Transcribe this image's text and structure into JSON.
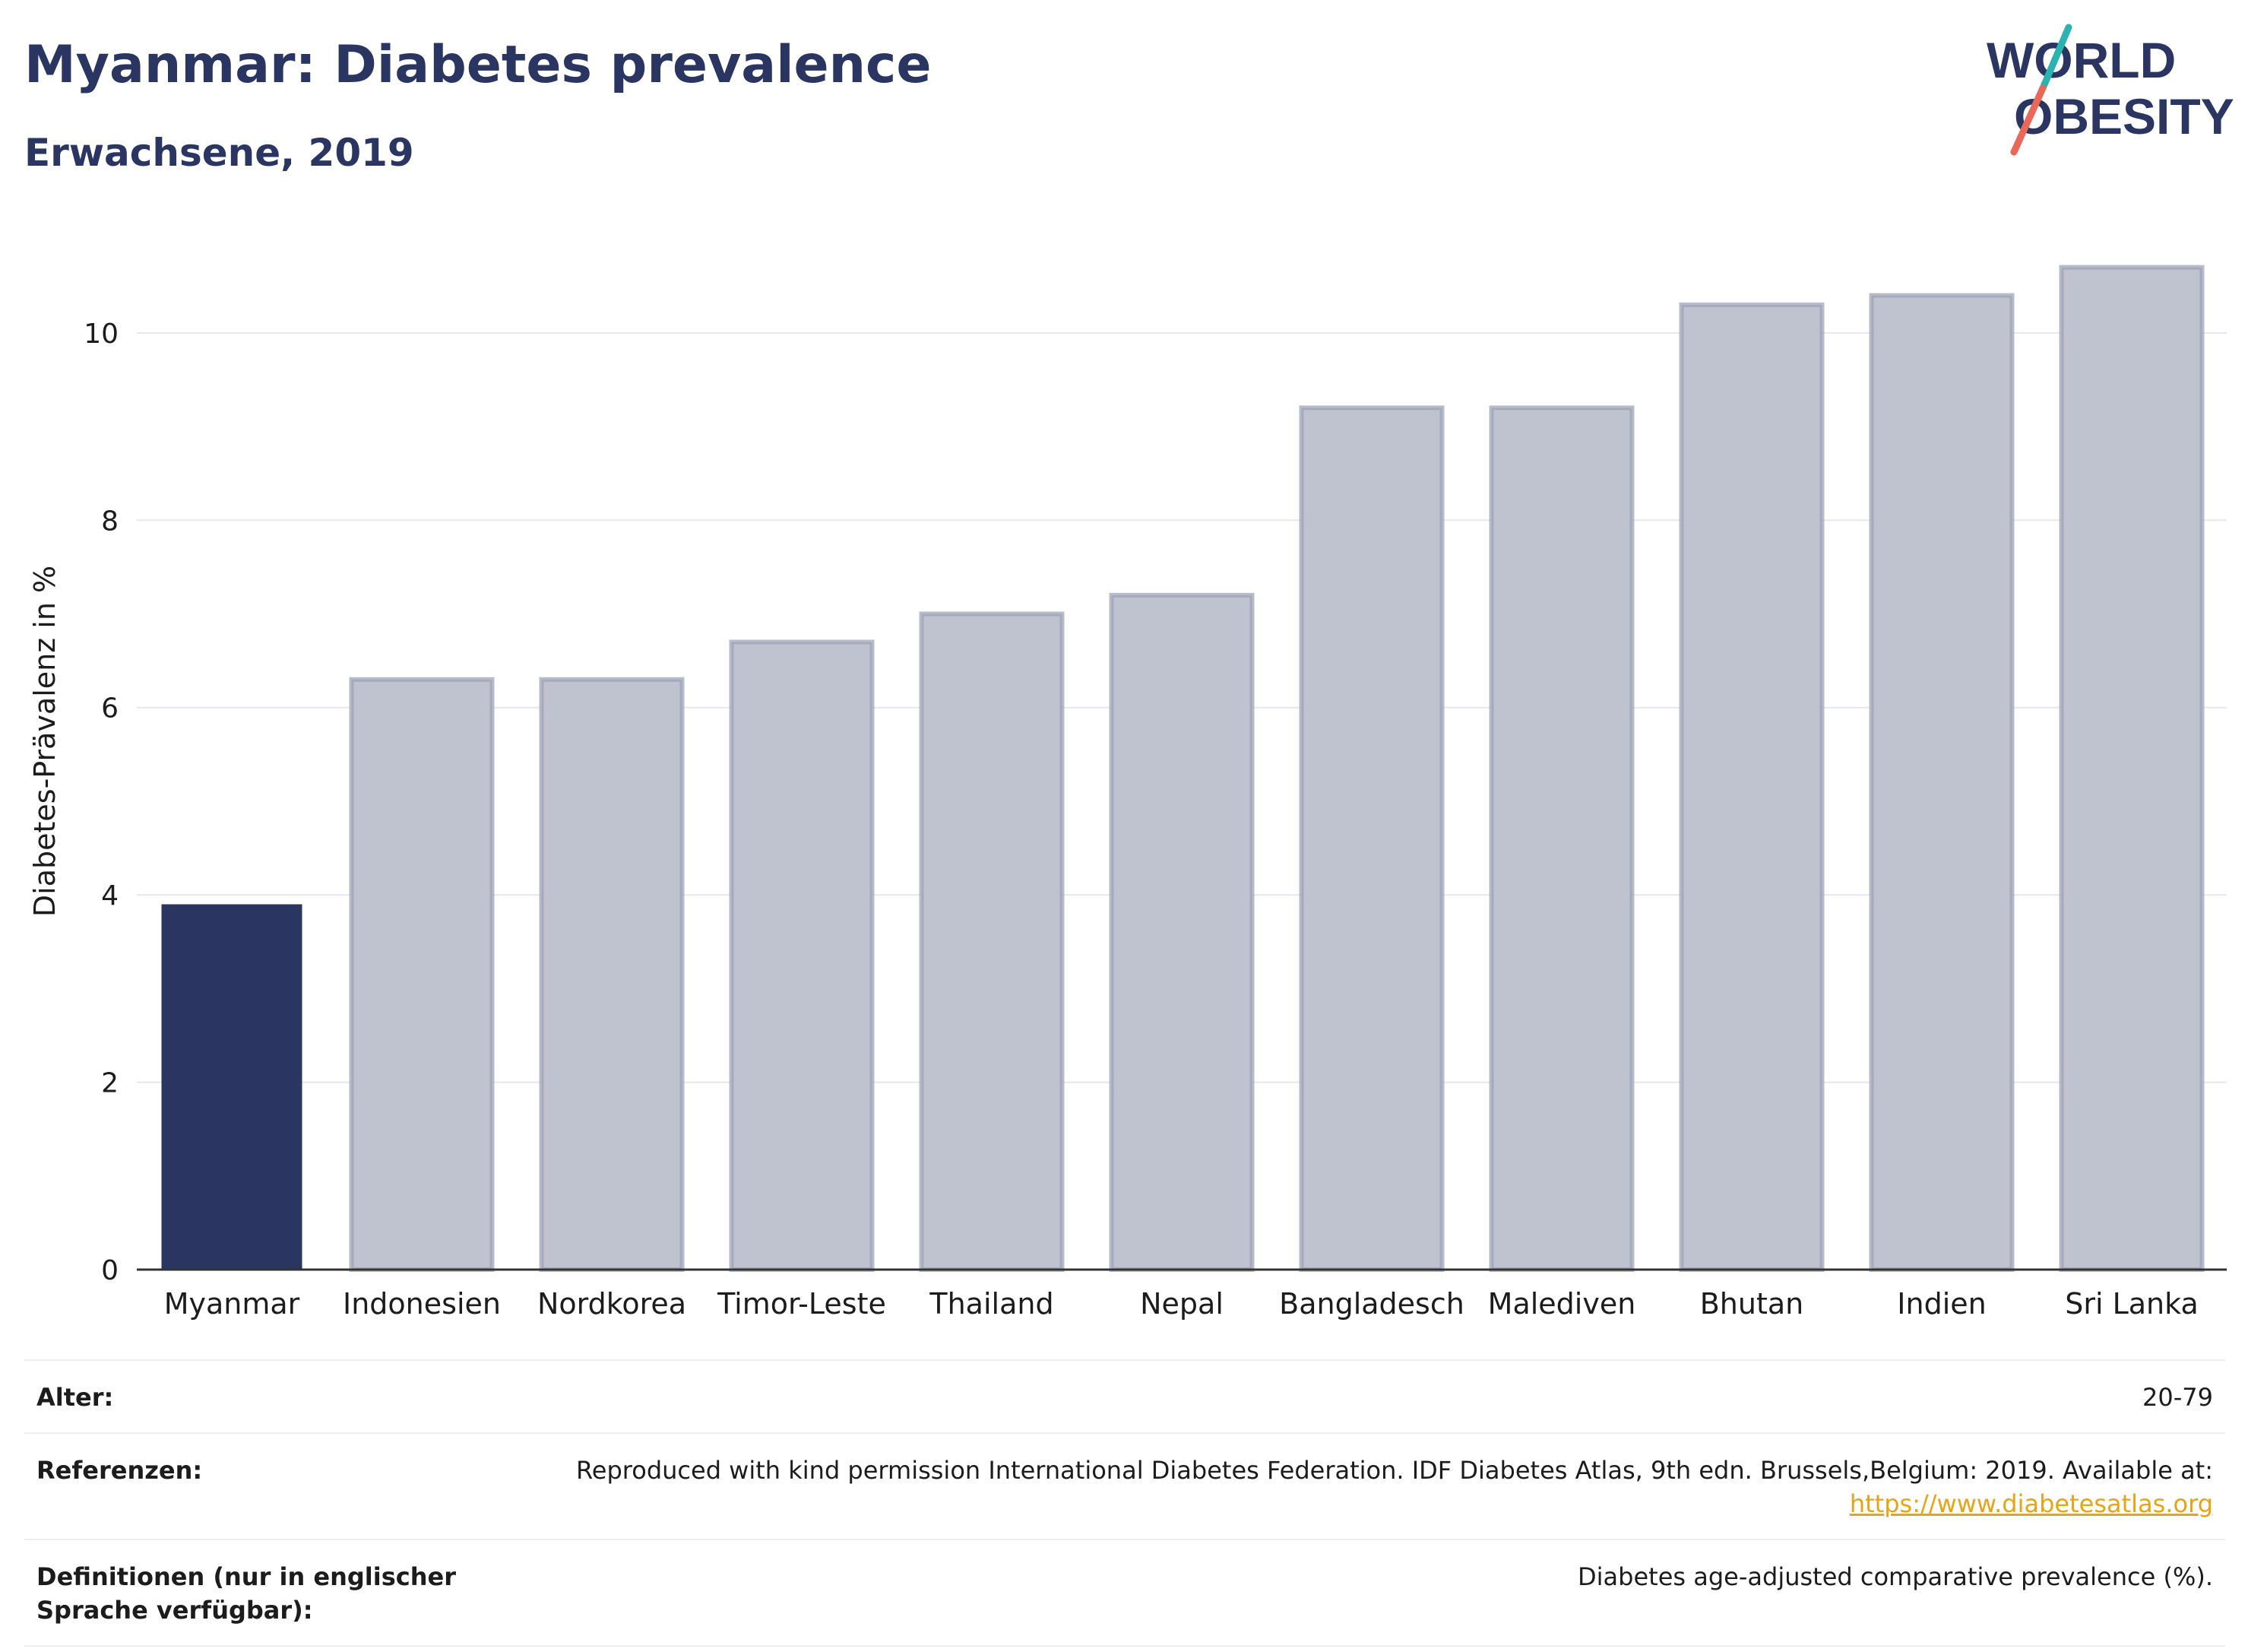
{
  "header": {
    "title": "Myanmar: Diabetes prevalence",
    "subtitle": "Erwachsene, 2019"
  },
  "logo": {
    "line1": "WORLD",
    "line2": "OBESITY",
    "colors": {
      "text": "#2b3561",
      "slash_top": "#2bb3b1",
      "slash_bottom": "#e8695a"
    }
  },
  "chart_data": {
    "type": "bar",
    "categories": [
      "Myanmar",
      "Indonesien",
      "Nordkorea",
      "Timor-Leste",
      "Thailand",
      "Nepal",
      "Bangladesch",
      "Malediven",
      "Bhutan",
      "Indien",
      "Sri Lanka"
    ],
    "values": [
      3.9,
      6.3,
      6.3,
      6.7,
      7.0,
      7.2,
      9.2,
      9.2,
      10.3,
      10.4,
      10.7
    ],
    "highlight": "Myanmar",
    "ylabel": "Diabetes-Prävalenz in %",
    "ylim": [
      0,
      11.2
    ],
    "yticks": [
      0,
      2,
      4,
      6,
      8,
      10
    ],
    "grid": true,
    "colors": {
      "highlight": "#2b3561",
      "other_fill": "#bfc2cf",
      "other_stroke": "#9a9fb4",
      "grid": "#e6e8ee",
      "axis": "#333333"
    }
  },
  "footer": {
    "rows": [
      {
        "key": "Alter:",
        "value": "20-79"
      },
      {
        "key": "Referenzen:",
        "value": "Reproduced with kind permission International Diabetes Federation. IDF Diabetes Atlas, 9th edn. Brussels,Belgium: 2019. Available at:",
        "link": "https://www.diabetesatlas.org"
      },
      {
        "key": "Definitionen (nur in englischer Sprache verfügbar):",
        "value": "Diabetes age-adjusted comparative prevalence (%)."
      }
    ]
  }
}
